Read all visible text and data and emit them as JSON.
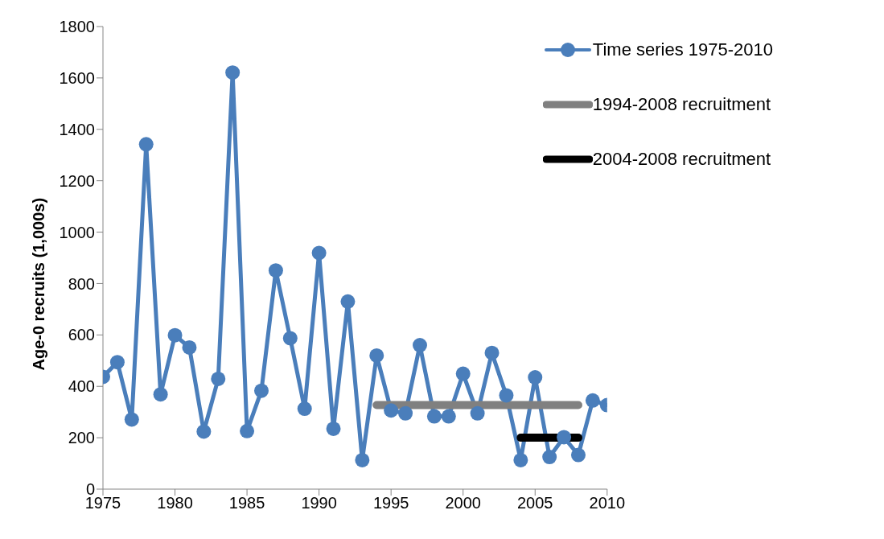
{
  "chart_data": {
    "type": "line",
    "ylabel": "Age-0 recruits (1,000s)",
    "x": [
      1975,
      1976,
      1977,
      1978,
      1979,
      1980,
      1981,
      1982,
      1983,
      1984,
      1985,
      1986,
      1987,
      1988,
      1989,
      1990,
      1991,
      1992,
      1993,
      1994,
      1995,
      1996,
      1997,
      1998,
      1999,
      2000,
      2001,
      2002,
      2003,
      2004,
      2005,
      2006,
      2007,
      2008,
      2009,
      2010
    ],
    "series": [
      {
        "name": "Time series 1975-2010",
        "color": "#4a7ebb",
        "marker": "circle",
        "values": [
          437,
          494,
          271,
          1342,
          369,
          599,
          551,
          224,
          429,
          1621,
          226,
          383,
          851,
          587,
          313,
          919,
          235,
          730,
          113,
          520,
          306,
          295,
          560,
          283,
          283,
          449,
          295,
          530,
          365,
          113,
          435,
          125,
          202,
          133,
          345,
          327
        ]
      },
      {
        "name": "1994-2008 recruitment",
        "color": "#808080",
        "marker": "none",
        "x": [
          1994,
          2008
        ],
        "values": [
          327,
          327
        ]
      },
      {
        "name": "2004-2008 recruitment",
        "color": "#000000",
        "marker": "none",
        "x": [
          2004,
          2008
        ],
        "values": [
          200,
          200
        ]
      }
    ],
    "xlim": [
      1975,
      2010
    ],
    "xticks": [
      1975,
      1980,
      1985,
      1990,
      1995,
      2000,
      2005,
      2010
    ],
    "ylim": [
      0,
      1800
    ],
    "yticks": [
      0,
      200,
      400,
      600,
      800,
      1000,
      1200,
      1400,
      1600,
      1800
    ],
    "legend": "top right",
    "line_style": "solid"
  }
}
